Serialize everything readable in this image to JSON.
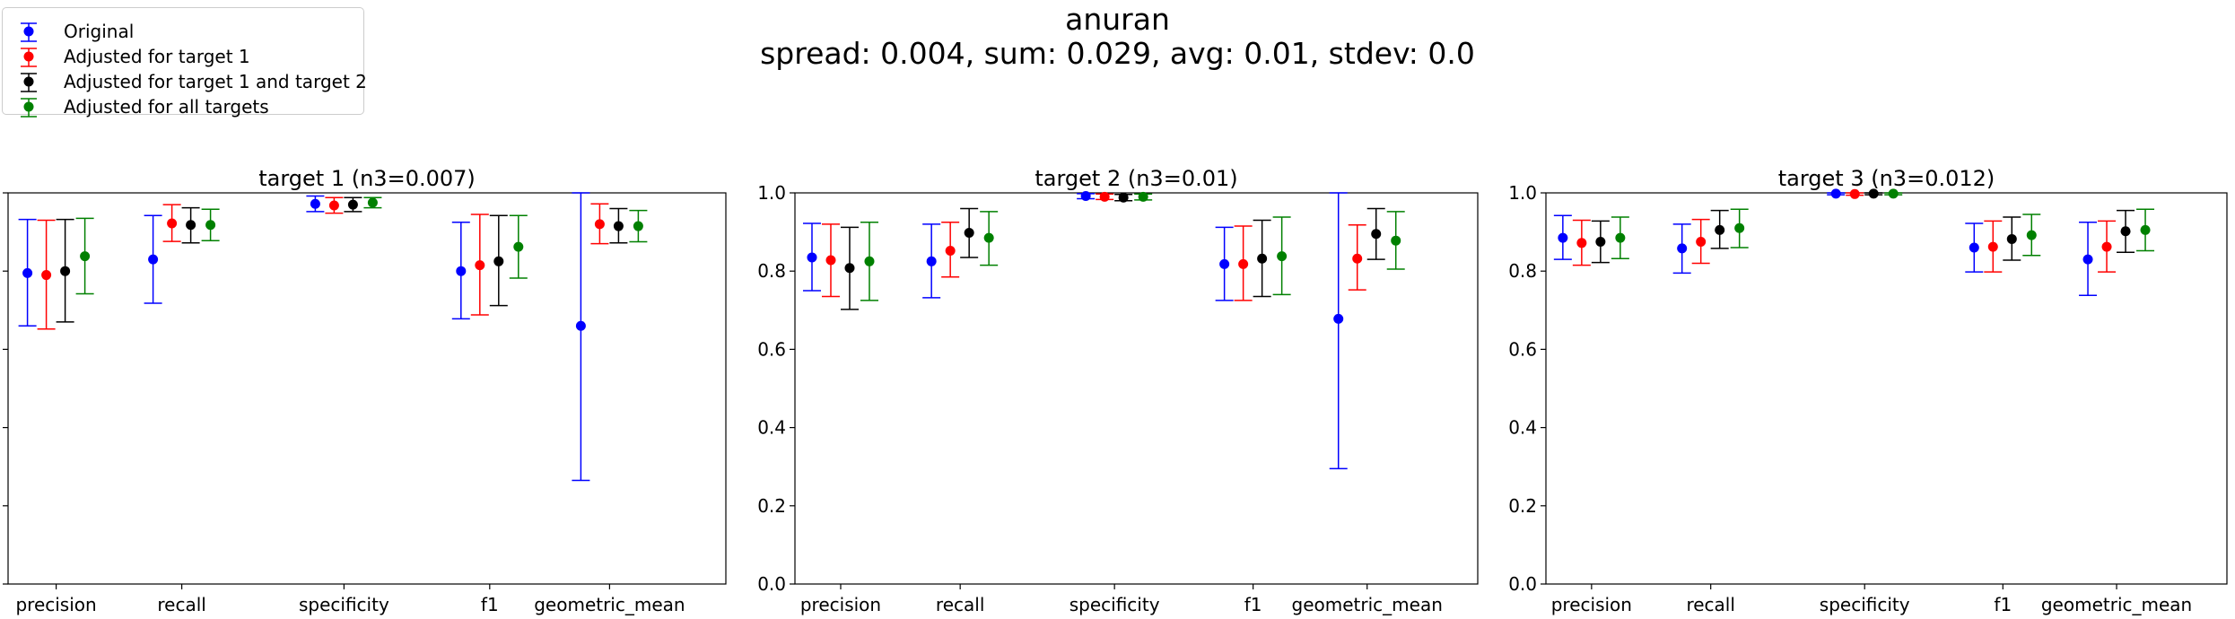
{
  "figure": {
    "title": "anuran",
    "subtitle": "spread: 0.004, sum: 0.029, avg: 0.01, stdev: 0.0"
  },
  "legend": {
    "placement": "top-left",
    "items": [
      {
        "label": "Original",
        "color": "#0000ff"
      },
      {
        "label": "Adjusted for target 1",
        "color": "#ff0000"
      },
      {
        "label": "Adjusted for target 1 and target 2",
        "color": "#000000"
      },
      {
        "label": "Adjusted for all targets",
        "color": "#008000"
      }
    ]
  },
  "chart_data": [
    {
      "type": "scatter",
      "title": "target 1 (n3=0.007)",
      "categories": [
        "precision",
        "recall",
        "specificity",
        "f1",
        "geometric_mean"
      ],
      "ylim": [
        0.0,
        1.0
      ],
      "yticks": [
        "0.0",
        "0.2",
        "0.4",
        "0.6",
        "0.8",
        "1.0"
      ],
      "series": [
        {
          "name": "Original",
          "color": "#0000ff",
          "values": [
            0.795,
            0.83,
            0.972,
            0.8,
            0.66
          ],
          "lower": [
            0.66,
            0.718,
            0.952,
            0.678,
            0.265
          ],
          "upper": [
            0.932,
            0.942,
            0.992,
            0.925,
            1.0
          ]
        },
        {
          "name": "Adjusted for target 1",
          "color": "#ff0000",
          "values": [
            0.79,
            0.922,
            0.968,
            0.815,
            0.92
          ],
          "lower": [
            0.652,
            0.876,
            0.948,
            0.688,
            0.87
          ],
          "upper": [
            0.93,
            0.97,
            0.988,
            0.945,
            0.972
          ]
        },
        {
          "name": "Adjusted for target 1 and target 2",
          "color": "#000000",
          "values": [
            0.8,
            0.918,
            0.97,
            0.825,
            0.915
          ],
          "lower": [
            0.67,
            0.872,
            0.952,
            0.712,
            0.872
          ],
          "upper": [
            0.932,
            0.962,
            0.988,
            0.942,
            0.96
          ]
        },
        {
          "name": "Adjusted for all targets",
          "color": "#008000",
          "values": [
            0.838,
            0.918,
            0.975,
            0.862,
            0.915
          ],
          "lower": [
            0.742,
            0.878,
            0.962,
            0.782,
            0.875
          ],
          "upper": [
            0.935,
            0.958,
            0.988,
            0.942,
            0.955
          ]
        }
      ]
    },
    {
      "type": "scatter",
      "title": "target 2 (n3=0.01)",
      "categories": [
        "precision",
        "recall",
        "specificity",
        "f1",
        "geometric_mean"
      ],
      "ylim": [
        0.0,
        1.0
      ],
      "yticks": [
        "0.0",
        "0.2",
        "0.4",
        "0.6",
        "0.8",
        "1.0"
      ],
      "series": [
        {
          "name": "Original",
          "color": "#0000ff",
          "values": [
            0.835,
            0.825,
            0.992,
            0.818,
            0.678
          ],
          "lower": [
            0.75,
            0.732,
            0.985,
            0.725,
            0.295
          ],
          "upper": [
            0.922,
            0.92,
            0.998,
            0.912,
            1.0
          ]
        },
        {
          "name": "Adjusted for target 1",
          "color": "#ff0000",
          "values": [
            0.828,
            0.852,
            0.99,
            0.818,
            0.832
          ],
          "lower": [
            0.735,
            0.785,
            0.983,
            0.725,
            0.752
          ],
          "upper": [
            0.92,
            0.925,
            0.997,
            0.915,
            0.918
          ]
        },
        {
          "name": "Adjusted for target 1 and target 2",
          "color": "#000000",
          "values": [
            0.808,
            0.898,
            0.988,
            0.832,
            0.895
          ],
          "lower": [
            0.702,
            0.835,
            0.98,
            0.735,
            0.83
          ],
          "upper": [
            0.912,
            0.96,
            0.996,
            0.93,
            0.96
          ]
        },
        {
          "name": "Adjusted for all targets",
          "color": "#008000",
          "values": [
            0.825,
            0.885,
            0.99,
            0.838,
            0.878
          ],
          "lower": [
            0.725,
            0.815,
            0.982,
            0.74,
            0.805
          ],
          "upper": [
            0.925,
            0.952,
            0.997,
            0.938,
            0.952
          ]
        }
      ]
    },
    {
      "type": "scatter",
      "title": "target 3 (n3=0.012)",
      "categories": [
        "precision",
        "recall",
        "specificity",
        "f1",
        "geometric_mean"
      ],
      "ylim": [
        0.0,
        1.0
      ],
      "yticks": [
        "0.0",
        "0.2",
        "0.4",
        "0.6",
        "0.8",
        "1.0"
      ],
      "series": [
        {
          "name": "Original",
          "color": "#0000ff",
          "values": [
            0.885,
            0.858,
            0.998,
            0.86,
            0.83
          ],
          "lower": [
            0.83,
            0.795,
            0.995,
            0.798,
            0.738
          ],
          "upper": [
            0.942,
            0.92,
            1.0,
            0.922,
            0.925
          ]
        },
        {
          "name": "Adjusted for target 1",
          "color": "#ff0000",
          "values": [
            0.872,
            0.875,
            0.997,
            0.862,
            0.862
          ],
          "lower": [
            0.815,
            0.82,
            0.994,
            0.798,
            0.798
          ],
          "upper": [
            0.93,
            0.932,
            1.0,
            0.928,
            0.928
          ]
        },
        {
          "name": "Adjusted for target 1 and target 2",
          "color": "#000000",
          "values": [
            0.875,
            0.905,
            0.998,
            0.882,
            0.902
          ],
          "lower": [
            0.822,
            0.858,
            0.995,
            0.828,
            0.848
          ],
          "upper": [
            0.928,
            0.955,
            1.0,
            0.938,
            0.955
          ]
        },
        {
          "name": "Adjusted for all targets",
          "color": "#008000",
          "values": [
            0.885,
            0.91,
            0.998,
            0.892,
            0.905
          ],
          "lower": [
            0.832,
            0.86,
            0.995,
            0.84,
            0.852
          ],
          "upper": [
            0.938,
            0.958,
            1.0,
            0.945,
            0.958
          ]
        }
      ]
    }
  ]
}
